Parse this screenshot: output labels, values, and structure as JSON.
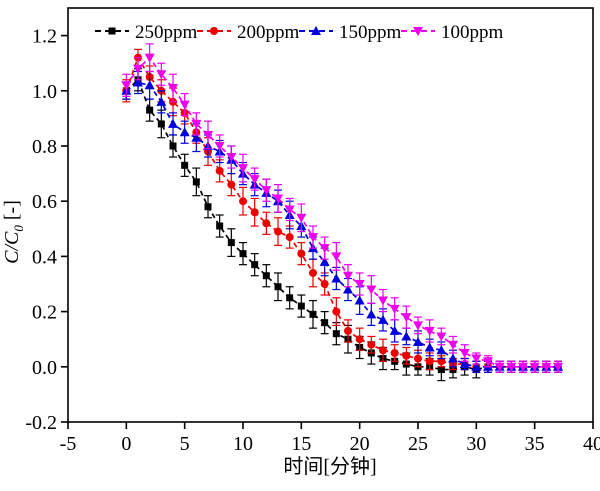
{
  "chart_data": {
    "type": "line",
    "subtype": "scatter-line-with-error-bars",
    "title": "",
    "xlabel": "时间[分钟]",
    "ylabel": "C/C0 [-]",
    "ylabel_parts": {
      "main": "C/C",
      "sub": "0",
      "unit": " [-]"
    },
    "xlim": [
      -5,
      40
    ],
    "ylim": [
      -0.2,
      1.3
    ],
    "xticks": [
      "-5",
      "0",
      "5",
      "10",
      "15",
      "20",
      "25",
      "30",
      "35",
      "40"
    ],
    "yticks": [
      "-0.2",
      "0.0",
      "0.2",
      "0.4",
      "0.6",
      "0.8",
      "1.0",
      "1.2"
    ],
    "grid": false,
    "legend_position": "top-inside",
    "line_style": "dashed",
    "x": [
      0,
      1,
      2,
      3,
      4,
      5,
      6,
      7,
      8,
      9,
      10,
      11,
      12,
      13,
      14,
      15,
      16,
      17,
      18,
      19,
      20,
      21,
      22,
      23,
      24,
      25,
      26,
      27,
      28,
      29,
      30,
      31,
      32,
      33,
      34,
      35,
      36,
      37
    ],
    "series": [
      {
        "name": "250ppm",
        "color": "#000000",
        "marker": "square",
        "values": [
          1.0,
          1.04,
          0.93,
          0.88,
          0.8,
          0.73,
          0.67,
          0.58,
          0.51,
          0.45,
          0.41,
          0.37,
          0.33,
          0.29,
          0.25,
          0.22,
          0.19,
          0.16,
          0.12,
          0.1,
          0.07,
          0.05,
          0.03,
          0.02,
          0.01,
          0.0,
          0.0,
          -0.01,
          -0.01,
          0.0,
          -0.01,
          0.0,
          0.0,
          0.0,
          0.0,
          0.0,
          0.0,
          0.0
        ],
        "errors": [
          0.03,
          0.04,
          0.04,
          0.05,
          0.04,
          0.04,
          0.05,
          0.04,
          0.04,
          0.05,
          0.04,
          0.04,
          0.04,
          0.05,
          0.04,
          0.04,
          0.05,
          0.04,
          0.04,
          0.05,
          0.04,
          0.04,
          0.04,
          0.03,
          0.04,
          0.03,
          0.03,
          0.04,
          0.03,
          0.03,
          0.03,
          0.02,
          0.02,
          0.02,
          0.02,
          0.02,
          0.02,
          0.02
        ]
      },
      {
        "name": "200ppm",
        "color": "#ee0000",
        "marker": "circle",
        "values": [
          1.0,
          1.12,
          1.05,
          1.0,
          0.96,
          0.92,
          0.85,
          0.78,
          0.71,
          0.66,
          0.6,
          0.56,
          0.52,
          0.49,
          0.47,
          0.41,
          0.34,
          0.3,
          0.2,
          0.13,
          0.1,
          0.08,
          0.06,
          0.05,
          0.04,
          0.03,
          0.02,
          0.02,
          0.01,
          0.01,
          0.0,
          0.0,
          0.0,
          0.0,
          0.0,
          0.0,
          0.0,
          0.0
        ],
        "errors": [
          0.04,
          0.03,
          0.04,
          0.04,
          0.05,
          0.04,
          0.04,
          0.05,
          0.04,
          0.04,
          0.05,
          0.05,
          0.04,
          0.05,
          0.04,
          0.04,
          0.05,
          0.04,
          0.05,
          0.04,
          0.04,
          0.03,
          0.04,
          0.03,
          0.03,
          0.03,
          0.03,
          0.02,
          0.02,
          0.02,
          0.02,
          0.02,
          0.02,
          0.02,
          0.02,
          0.02,
          0.02,
          0.02
        ]
      },
      {
        "name": "150ppm",
        "color": "#0000dd",
        "marker": "triangle-up",
        "values": [
          1.0,
          1.03,
          1.02,
          0.96,
          0.88,
          0.85,
          0.83,
          0.8,
          0.78,
          0.75,
          0.7,
          0.66,
          0.63,
          0.6,
          0.55,
          0.51,
          0.43,
          0.38,
          0.32,
          0.28,
          0.24,
          0.19,
          0.17,
          0.13,
          0.11,
          0.09,
          0.07,
          0.06,
          0.03,
          0.01,
          0.0,
          0.0,
          0.0,
          0.0,
          0.0,
          0.0,
          0.0,
          0.0
        ],
        "errors": [
          0.03,
          0.04,
          0.05,
          0.04,
          0.04,
          0.04,
          0.05,
          0.04,
          0.04,
          0.05,
          0.04,
          0.04,
          0.05,
          0.04,
          0.05,
          0.04,
          0.04,
          0.05,
          0.04,
          0.04,
          0.05,
          0.04,
          0.04,
          0.04,
          0.03,
          0.04,
          0.03,
          0.03,
          0.03,
          0.02,
          0.02,
          0.02,
          0.02,
          0.02,
          0.02,
          0.02,
          0.02,
          0.02
        ]
      },
      {
        "name": "100ppm",
        "color": "#ee00ee",
        "marker": "triangle-down",
        "values": [
          1.02,
          1.08,
          1.12,
          1.06,
          1.01,
          0.95,
          0.88,
          0.84,
          0.8,
          0.76,
          0.72,
          0.68,
          0.64,
          0.61,
          0.57,
          0.54,
          0.47,
          0.43,
          0.4,
          0.33,
          0.3,
          0.28,
          0.24,
          0.21,
          0.18,
          0.15,
          0.13,
          0.11,
          0.08,
          0.05,
          0.03,
          0.02,
          0.0,
          0.0,
          0.0,
          0.0,
          0.0,
          0.0
        ],
        "errors": [
          0.04,
          0.04,
          0.05,
          0.04,
          0.05,
          0.04,
          0.04,
          0.05,
          0.04,
          0.04,
          0.05,
          0.04,
          0.04,
          0.05,
          0.04,
          0.05,
          0.04,
          0.04,
          0.05,
          0.04,
          0.04,
          0.05,
          0.04,
          0.04,
          0.04,
          0.03,
          0.04,
          0.03,
          0.03,
          0.03,
          0.02,
          0.02,
          0.02,
          0.02,
          0.02,
          0.02,
          0.02,
          0.02
        ]
      }
    ]
  }
}
